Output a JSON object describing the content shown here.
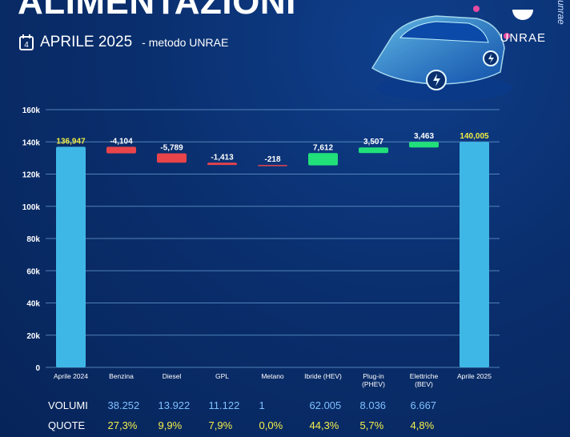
{
  "header": {
    "title": "ALIMENTAZIONI",
    "subtitle_main": "APRILE 2025",
    "subtitle_secondary": "- metodo UNRAE",
    "calendar_day": "4",
    "brand": "UNRAE",
    "brand_vertical": "unrae"
  },
  "colors": {
    "total_bar": "#3fb7e6",
    "decrease_bar": "#e8444a",
    "increase_bar": "#21e07a",
    "total_label": "#f3ee42",
    "grid": "#6fa7d8"
  },
  "chart_data": {
    "type": "bar",
    "subtype": "waterfall",
    "categories": [
      "Aprile 2024",
      "Benzina",
      "Diesel",
      "GPL",
      "Metano",
      "Ibride (HEV)",
      "Plug-in (PHEV)",
      "Elettriche (BEV)",
      "Aprile 2025"
    ],
    "values": [
      136947,
      -4104,
      -5789,
      -1413,
      -218,
      7612,
      3507,
      3463,
      140005
    ],
    "kinds": [
      "total",
      "delta",
      "delta",
      "delta",
      "delta",
      "delta",
      "delta",
      "delta",
      "total"
    ],
    "data_labels": [
      "136,947",
      "-4,104",
      "-5,789",
      "-1,413",
      "-218",
      "7,612",
      "3,507",
      "3,463",
      "140,005"
    ],
    "ylim": [
      0,
      160000
    ],
    "yticks": [
      0,
      20000,
      40000,
      60000,
      80000,
      100000,
      120000,
      140000,
      160000
    ],
    "ytick_labels": [
      "0",
      "20k",
      "40k",
      "60k",
      "80k",
      "100k",
      "120k",
      "140k",
      "160k"
    ],
    "grid": true
  },
  "table": {
    "volumi_label": "VOLUMI",
    "quote_label": "QUOTE",
    "volumi": [
      "38.252",
      "13.922",
      "11.122",
      "1",
      "62.005",
      "8.036",
      "6.667"
    ],
    "quote": [
      "27,3%",
      "9,9%",
      "7,9%",
      "0,0%",
      "44,3%",
      "5,7%",
      "4,8%"
    ]
  }
}
